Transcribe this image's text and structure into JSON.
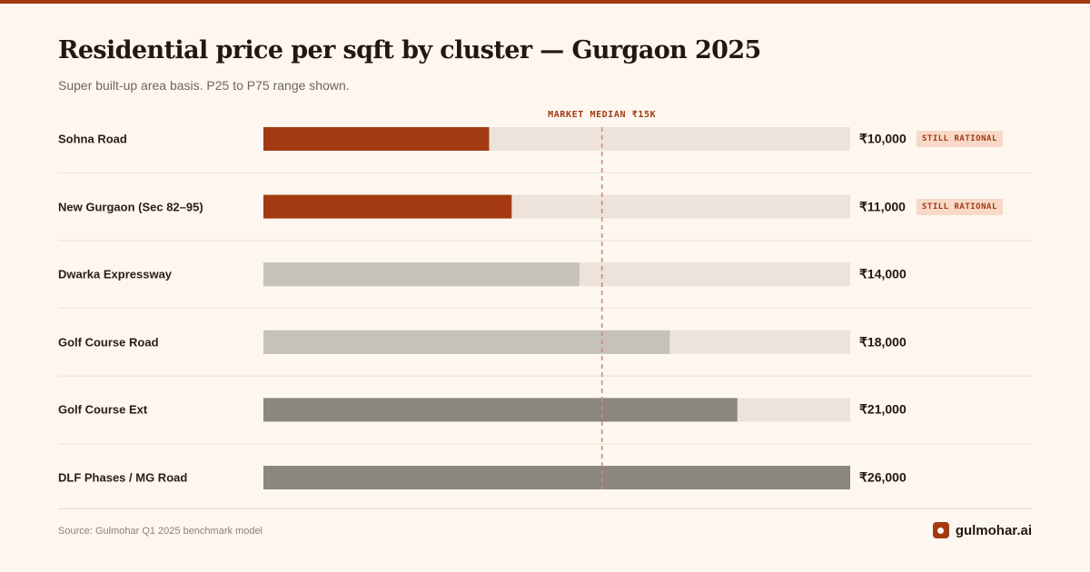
{
  "chart_data": {
    "type": "bar",
    "title": "Residential price per sqft by cluster — Gurgaon 2025",
    "subtitle": "Super built-up area basis. P25 to P75 range shown.",
    "xlim": [
      0,
      26000
    ],
    "median": {
      "value": 15000,
      "label": "MARKET MEDIAN ₹15K"
    },
    "categories": [
      "Sohna Road",
      "New Gurgaon (Sec 82–95)",
      "Dwarka Expressway",
      "Golf Course Road",
      "Golf Course Ext",
      "DLF Phases / MG Road"
    ],
    "values": [
      10000,
      11000,
      14000,
      18000,
      21000,
      26000
    ],
    "value_labels": [
      "₹10,000",
      "₹11,000",
      "₹14,000",
      "₹18,000",
      "₹21,000",
      "₹26,000"
    ],
    "tags": [
      "STILL RATIONAL",
      "STILL RATIONAL",
      "",
      "",
      "",
      ""
    ],
    "bar_colors": [
      "#a33a12",
      "#a33a12",
      "#c5c1bb",
      "#c5c1bb",
      "#8a8780",
      "#8a8780"
    ],
    "track_color": "#ede3da",
    "grid": false
  },
  "footer": {
    "source": "Source: Gulmohar Q1 2025 benchmark model",
    "brand": "gulmohar.ai"
  }
}
